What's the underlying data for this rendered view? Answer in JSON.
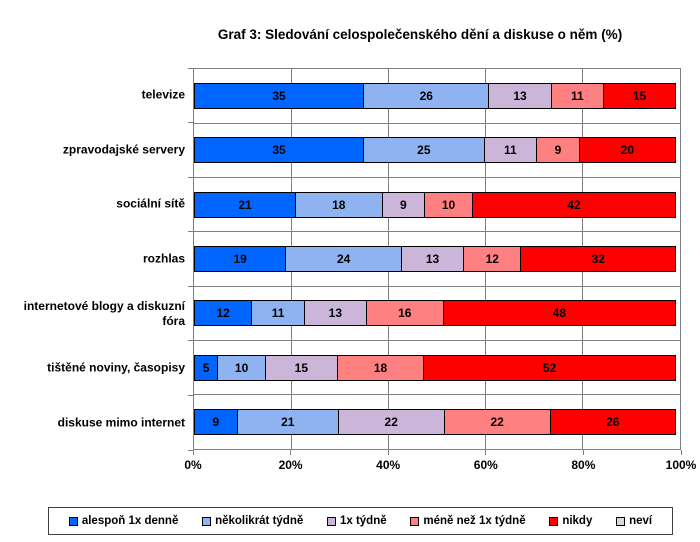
{
  "title": "Graf 3: Sledování celospolečenského dění a diskuse o něm (%)",
  "chart_data": {
    "type": "bar",
    "orientation": "horizontal",
    "stacked": true,
    "title": "Graf 3: Sledování celospolečenského dění a diskuse o něm (%)",
    "categories": [
      "televize",
      "zpravodajské servery",
      "sociální sítě",
      "rozhlas",
      "internetové blogy a diskuzní fóra",
      "tištěné noviny, časopisy",
      "diskuse mimo internet"
    ],
    "series": [
      {
        "name": "alespoň 1x denně",
        "color": "#0066FF",
        "values": [
          35,
          35,
          21,
          19,
          12,
          5,
          9
        ]
      },
      {
        "name": "několikrát týdně",
        "color": "#8FB3F0",
        "values": [
          26,
          25,
          18,
          24,
          11,
          10,
          21
        ]
      },
      {
        "name": "1x týdně",
        "color": "#CBB5D9",
        "values": [
          13,
          11,
          9,
          13,
          13,
          15,
          22
        ]
      },
      {
        "name": "méně než 1x týdně",
        "color": "#FF8080",
        "values": [
          11,
          9,
          10,
          12,
          16,
          18,
          22
        ]
      },
      {
        "name": "nikdy",
        "color": "#FF0000",
        "values": [
          15,
          20,
          42,
          32,
          48,
          52,
          26
        ]
      },
      {
        "name": "neví",
        "color": "#D9D9D9",
        "values": [
          0,
          0,
          0,
          0,
          0,
          0,
          0
        ]
      }
    ],
    "x_axis": {
      "tick_values": [
        0,
        20,
        40,
        60,
        80,
        100
      ],
      "tick_labels": [
        "0%",
        "20%",
        "40%",
        "60%",
        "80%",
        "100%"
      ],
      "range": [
        0,
        100
      ],
      "gridline_values": [
        20,
        40,
        60,
        80
      ]
    },
    "legend_position": "bottom",
    "grid": true,
    "colors": {
      "gridline": "#808080",
      "axis": "#808080",
      "bar_border": "#000000",
      "text": "#000000",
      "background": "#FFFFFF"
    }
  }
}
